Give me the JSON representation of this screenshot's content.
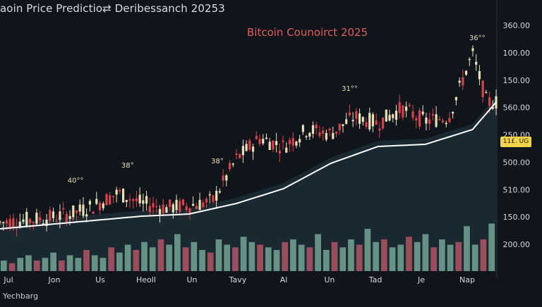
{
  "header": {
    "title": "aoin Price Predictio⇄ Deribessanch 20253",
    "subtitle": "Bitcoin Counoirct 2025"
  },
  "footer": {
    "label": "Yechbarg"
  },
  "current_price_badge": "11£. UG",
  "colors": {
    "background": "#10151c",
    "bullish": "#e9dfb8",
    "bearish": "#d9424a",
    "trend_line": "#ffffff",
    "area_fill": "#1c2b35",
    "volume_up": "#7fb5a0",
    "volume_down": "#c85a6a",
    "badge": "#f3d34a",
    "subtitle": "#e25c5c"
  },
  "chart_data": {
    "type": "candlestick",
    "title": "Bitcoin Counoirct 2025",
    "x_labels": [
      "Jul",
      "Jon",
      "Us",
      "Heoll",
      "Un",
      "Tavy",
      "Al",
      "Un",
      "Tad",
      "Je",
      "Nap"
    ],
    "y_labels": [
      "360.00",
      "100.00",
      "150.00",
      "560.00",
      "250.00",
      "500.00",
      "510.00",
      "150.00",
      "200.00"
    ],
    "current_price": "11£. UG",
    "annotations": [
      {
        "text": "40°°",
        "x_index": 1.6
      },
      {
        "text": "38°",
        "x_index": 2.7
      },
      {
        "text": "38°",
        "x_index": 4.6
      },
      {
        "text": "31°°",
        "x_index": 7.4
      },
      {
        "text": "36°°",
        "x_index": 10.1
      }
    ],
    "price_series": {
      "note": "approximate close levels across the timeline (0 = bottom, 100 = top of price pane)",
      "x": [
        0,
        0.5,
        1,
        1.5,
        2,
        2.5,
        3,
        3.5,
        4,
        4.5,
        5,
        5.5,
        6,
        6.5,
        7,
        7.5,
        8,
        8.5,
        9,
        9.5,
        10,
        10.3
      ],
      "values": [
        8,
        9,
        10,
        12,
        16,
        22,
        17,
        15,
        16,
        18,
        38,
        48,
        44,
        52,
        50,
        58,
        55,
        62,
        56,
        58,
        88,
        65
      ]
    },
    "trend_series": {
      "x": [
        0,
        1,
        2,
        3,
        4,
        5,
        6,
        7,
        8,
        9,
        10,
        10.5
      ],
      "values": [
        5,
        7,
        9,
        11,
        12,
        17,
        24,
        36,
        44,
        45,
        52,
        65
      ]
    },
    "volume_series": {
      "note": "relative volume 0-100",
      "values": [
        20,
        15,
        25,
        30,
        20,
        25,
        35,
        20,
        30,
        25,
        40,
        30,
        25,
        45,
        35,
        50,
        40,
        55,
        45,
        60,
        50,
        70,
        45,
        55,
        40,
        35,
        60,
        50,
        45,
        65,
        55,
        50,
        45,
        40,
        55,
        60,
        50,
        45,
        70,
        40,
        55,
        45,
        60,
        50,
        80,
        55,
        60,
        45,
        50,
        65,
        55,
        70,
        45,
        60,
        50,
        55,
        85,
        50,
        60,
        90
      ]
    },
    "grid": false,
    "legend": "none"
  }
}
